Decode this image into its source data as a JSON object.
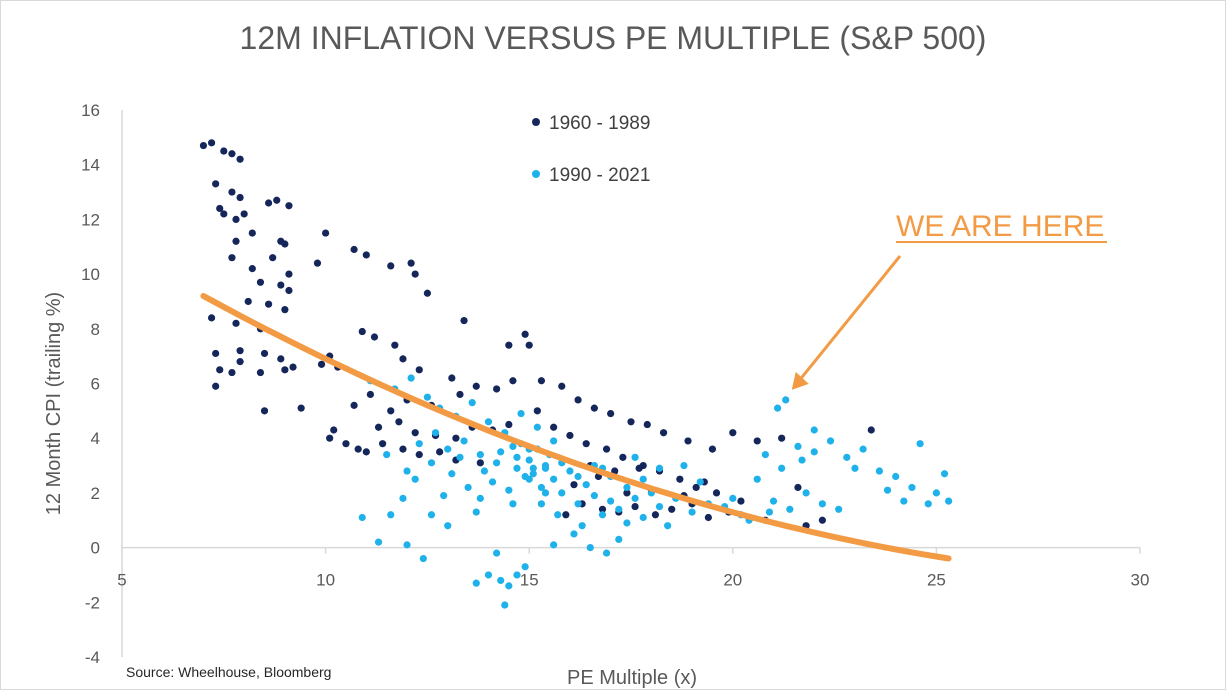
{
  "colors": {
    "series_1960_1989": "#15265a",
    "series_1990_2021": "#1fb2ea",
    "trend": "#f39a45",
    "axis": "#d9d9d9",
    "text": "#595959"
  },
  "source_note": "Source: Wheelhouse, Bloomberg",
  "chart_data": {
    "type": "scatter",
    "title": "12M INFLATION VERSUS PE MULTIPLE (S&P 500)",
    "xlabel": "PE Multiple (x)",
    "ylabel": "12 Month CPI (trailing %)",
    "xlim": [
      5,
      30
    ],
    "ylim": [
      -4,
      16
    ],
    "xticks": [
      5,
      10,
      15,
      20,
      25,
      30
    ],
    "yticks": [
      -4,
      -2,
      0,
      2,
      4,
      6,
      8,
      10,
      12,
      14,
      16
    ],
    "grid": false,
    "legend_position": "top-center",
    "series": [
      {
        "name": "1960 - 1989",
        "points": [
          [
            7.0,
            14.7
          ],
          [
            7.2,
            14.8
          ],
          [
            7.5,
            14.5
          ],
          [
            7.7,
            14.4
          ],
          [
            7.9,
            14.2
          ],
          [
            7.3,
            13.3
          ],
          [
            7.7,
            13.0
          ],
          [
            7.9,
            12.8
          ],
          [
            7.4,
            12.4
          ],
          [
            7.8,
            12.0
          ],
          [
            7.5,
            12.2
          ],
          [
            8.0,
            12.2
          ],
          [
            8.6,
            12.6
          ],
          [
            8.8,
            12.7
          ],
          [
            9.1,
            12.5
          ],
          [
            7.8,
            11.2
          ],
          [
            8.2,
            11.5
          ],
          [
            8.9,
            11.2
          ],
          [
            9.0,
            11.1
          ],
          [
            7.7,
            10.6
          ],
          [
            8.2,
            10.2
          ],
          [
            8.7,
            10.6
          ],
          [
            9.1,
            10.0
          ],
          [
            8.4,
            9.7
          ],
          [
            8.9,
            9.6
          ],
          [
            9.1,
            9.4
          ],
          [
            8.1,
            9.0
          ],
          [
            8.6,
            8.9
          ],
          [
            9.0,
            8.7
          ],
          [
            7.2,
            8.4
          ],
          [
            7.8,
            8.2
          ],
          [
            8.4,
            8.0
          ],
          [
            7.3,
            7.1
          ],
          [
            7.9,
            7.2
          ],
          [
            8.5,
            7.1
          ],
          [
            8.9,
            6.9
          ],
          [
            9.2,
            6.6
          ],
          [
            7.4,
            6.5
          ],
          [
            7.9,
            6.8
          ],
          [
            8.4,
            6.4
          ],
          [
            9.0,
            6.5
          ],
          [
            7.3,
            5.9
          ],
          [
            7.7,
            6.4
          ],
          [
            8.5,
            5.0
          ],
          [
            9.4,
            5.1
          ],
          [
            9.8,
            10.4
          ],
          [
            10.0,
            11.5
          ],
          [
            10.7,
            10.9
          ],
          [
            11.0,
            10.7
          ],
          [
            11.6,
            10.3
          ],
          [
            12.1,
            10.4
          ],
          [
            12.2,
            10.0
          ],
          [
            12.5,
            9.3
          ],
          [
            9.9,
            6.7
          ],
          [
            10.1,
            7.0
          ],
          [
            10.3,
            6.6
          ],
          [
            10.9,
            7.9
          ],
          [
            11.2,
            7.7
          ],
          [
            11.7,
            7.4
          ],
          [
            11.9,
            6.9
          ],
          [
            12.3,
            6.5
          ],
          [
            10.2,
            4.3
          ],
          [
            10.1,
            4.0
          ],
          [
            10.5,
            3.8
          ],
          [
            10.8,
            3.6
          ],
          [
            11.0,
            3.5
          ],
          [
            11.4,
            3.8
          ],
          [
            11.9,
            3.6
          ],
          [
            12.3,
            3.4
          ],
          [
            12.8,
            3.5
          ],
          [
            13.2,
            3.2
          ],
          [
            13.8,
            3.1
          ],
          [
            10.7,
            5.2
          ],
          [
            11.1,
            5.6
          ],
          [
            11.6,
            5.0
          ],
          [
            12.0,
            5.4
          ],
          [
            12.6,
            5.2
          ],
          [
            13.3,
            5.6
          ],
          [
            13.7,
            5.9
          ],
          [
            14.2,
            5.8
          ],
          [
            14.6,
            6.1
          ],
          [
            11.3,
            4.4
          ],
          [
            11.8,
            4.6
          ],
          [
            12.2,
            4.2
          ],
          [
            12.7,
            4.1
          ],
          [
            13.2,
            4.0
          ],
          [
            13.6,
            4.4
          ],
          [
            14.1,
            4.3
          ],
          [
            14.5,
            4.5
          ],
          [
            13.1,
            6.2
          ],
          [
            13.4,
            8.3
          ],
          [
            14.5,
            7.4
          ],
          [
            14.9,
            7.8
          ],
          [
            15.0,
            7.4
          ],
          [
            15.3,
            6.1
          ],
          [
            15.8,
            5.9
          ],
          [
            16.2,
            5.4
          ],
          [
            16.6,
            5.1
          ],
          [
            17.0,
            4.9
          ],
          [
            17.5,
            4.6
          ],
          [
            17.9,
            4.5
          ],
          [
            18.3,
            4.2
          ],
          [
            18.9,
            3.9
          ],
          [
            19.5,
            3.6
          ],
          [
            15.2,
            5.0
          ],
          [
            15.6,
            4.4
          ],
          [
            16.0,
            4.1
          ],
          [
            16.4,
            3.8
          ],
          [
            16.9,
            3.6
          ],
          [
            17.3,
            3.3
          ],
          [
            17.8,
            3.0
          ],
          [
            18.2,
            2.8
          ],
          [
            18.7,
            2.5
          ],
          [
            19.1,
            2.2
          ],
          [
            19.6,
            2.0
          ],
          [
            20.2,
            1.7
          ],
          [
            15.9,
            1.2
          ],
          [
            16.3,
            1.6
          ],
          [
            16.8,
            1.4
          ],
          [
            17.2,
            1.3
          ],
          [
            17.6,
            1.5
          ],
          [
            18.1,
            1.2
          ],
          [
            18.5,
            1.4
          ],
          [
            19.0,
            1.6
          ],
          [
            19.4,
            1.1
          ],
          [
            19.9,
            1.3
          ],
          [
            16.1,
            2.3
          ],
          [
            16.7,
            2.6
          ],
          [
            17.4,
            2.0
          ],
          [
            18.0,
            2.1
          ],
          [
            18.8,
            1.9
          ],
          [
            19.3,
            2.4
          ],
          [
            20.0,
            4.2
          ],
          [
            20.6,
            3.9
          ],
          [
            21.2,
            4.0
          ],
          [
            21.6,
            2.2
          ],
          [
            22.2,
            1.0
          ],
          [
            23.4,
            4.3
          ],
          [
            20.8,
            1.0
          ],
          [
            21.8,
            0.8
          ],
          [
            16.5,
            3.0
          ],
          [
            17.1,
            2.8
          ],
          [
            17.7,
            2.9
          ]
        ]
      },
      {
        "name": "1990 - 2021",
        "points": [
          [
            10.9,
            1.1
          ],
          [
            11.3,
            0.2
          ],
          [
            11.6,
            1.2
          ],
          [
            12.0,
            0.1
          ],
          [
            12.4,
            -0.4
          ],
          [
            11.9,
            1.8
          ],
          [
            12.2,
            2.5
          ],
          [
            12.6,
            3.1
          ],
          [
            12.9,
            1.9
          ],
          [
            13.1,
            2.7
          ],
          [
            13.3,
            3.3
          ],
          [
            13.5,
            2.2
          ],
          [
            13.7,
            1.3
          ],
          [
            13.9,
            2.8
          ],
          [
            14.1,
            2.4
          ],
          [
            14.3,
            3.5
          ],
          [
            14.5,
            2.1
          ],
          [
            14.7,
            2.9
          ],
          [
            14.8,
            3.8
          ],
          [
            15.0,
            3.2
          ],
          [
            15.1,
            2.7
          ],
          [
            15.2,
            3.6
          ],
          [
            15.3,
            2.2
          ],
          [
            15.4,
            2.9
          ],
          [
            15.5,
            3.4
          ],
          [
            15.6,
            2.5
          ],
          [
            15.8,
            2.0
          ],
          [
            16.0,
            2.8
          ],
          [
            16.2,
            1.6
          ],
          [
            16.4,
            2.3
          ],
          [
            16.6,
            1.9
          ],
          [
            16.8,
            1.2
          ],
          [
            17.0,
            2.6
          ],
          [
            17.2,
            1.4
          ],
          [
            17.4,
            0.9
          ],
          [
            17.6,
            1.8
          ],
          [
            17.8,
            1.1
          ],
          [
            18.0,
            2.0
          ],
          [
            18.2,
            1.5
          ],
          [
            18.4,
            0.8
          ],
          [
            14.2,
            -0.2
          ],
          [
            14.0,
            -1.0
          ],
          [
            13.7,
            -1.3
          ],
          [
            14.3,
            -1.2
          ],
          [
            14.5,
            -1.4
          ],
          [
            14.7,
            -1.0
          ],
          [
            14.4,
            -2.1
          ],
          [
            14.9,
            -0.7
          ],
          [
            15.6,
            0.1
          ],
          [
            16.1,
            0.5
          ],
          [
            16.5,
            0.0
          ],
          [
            16.9,
            -0.2
          ],
          [
            17.2,
            0.3
          ],
          [
            11.1,
            6.1
          ],
          [
            11.7,
            5.8
          ],
          [
            12.1,
            6.2
          ],
          [
            12.5,
            5.5
          ],
          [
            12.8,
            5.1
          ],
          [
            13.2,
            4.8
          ],
          [
            13.6,
            5.3
          ],
          [
            14.0,
            4.6
          ],
          [
            14.4,
            4.2
          ],
          [
            14.8,
            4.9
          ],
          [
            15.2,
            4.4
          ],
          [
            15.6,
            3.9
          ],
          [
            12.3,
            3.8
          ],
          [
            12.7,
            4.2
          ],
          [
            13.0,
            3.6
          ],
          [
            13.4,
            3.9
          ],
          [
            13.8,
            3.4
          ],
          [
            14.2,
            3.1
          ],
          [
            14.6,
            3.7
          ],
          [
            15.0,
            2.5
          ],
          [
            15.4,
            2.0
          ],
          [
            15.8,
            3.1
          ],
          [
            16.2,
            2.6
          ],
          [
            16.6,
            3.0
          ],
          [
            17.0,
            1.7
          ],
          [
            17.4,
            2.2
          ],
          [
            17.8,
            2.5
          ],
          [
            18.2,
            2.9
          ],
          [
            18.6,
            1.8
          ],
          [
            19.0,
            1.3
          ],
          [
            19.4,
            1.6
          ],
          [
            19.8,
            1.5
          ],
          [
            20.2,
            1.2
          ],
          [
            20.6,
            2.5
          ],
          [
            21.0,
            1.7
          ],
          [
            21.4,
            1.4
          ],
          [
            21.8,
            2.0
          ],
          [
            22.2,
            1.6
          ],
          [
            20.4,
            1.0
          ],
          [
            20.8,
            3.4
          ],
          [
            21.2,
            2.9
          ],
          [
            21.6,
            3.7
          ],
          [
            22.0,
            3.5
          ],
          [
            22.4,
            3.9
          ],
          [
            22.8,
            3.3
          ],
          [
            23.2,
            3.6
          ],
          [
            23.6,
            2.8
          ],
          [
            24.0,
            2.6
          ],
          [
            24.4,
            2.2
          ],
          [
            24.6,
            3.8
          ],
          [
            24.8,
            1.6
          ],
          [
            25.0,
            2.0
          ],
          [
            25.2,
            2.7
          ],
          [
            25.3,
            1.7
          ],
          [
            22.6,
            1.4
          ],
          [
            23.0,
            2.9
          ],
          [
            23.8,
            2.1
          ],
          [
            24.2,
            1.7
          ],
          [
            21.3,
            5.4
          ],
          [
            21.1,
            5.1
          ],
          [
            21.7,
            3.2
          ],
          [
            20.9,
            1.3
          ],
          [
            22.0,
            4.3
          ],
          [
            15.3,
            1.6
          ],
          [
            15.7,
            1.2
          ],
          [
            16.3,
            0.8
          ],
          [
            13.8,
            1.8
          ],
          [
            14.6,
            1.6
          ],
          [
            13.0,
            0.8
          ],
          [
            12.6,
            1.2
          ],
          [
            11.5,
            3.4
          ],
          [
            12.0,
            2.8
          ],
          [
            16.8,
            2.9
          ],
          [
            17.6,
            3.3
          ],
          [
            18.8,
            3.0
          ],
          [
            19.2,
            2.4
          ],
          [
            20.0,
            1.8
          ],
          [
            15.1,
            2.9
          ],
          [
            14.9,
            2.6
          ],
          [
            15.4,
            3.0
          ],
          [
            14.7,
            3.3
          ],
          [
            15.0,
            3.6
          ]
        ]
      }
    ],
    "trendline": {
      "type": "polynomial",
      "x_range": [
        7.0,
        25.3
      ],
      "y_at_start": 9.2,
      "y_at_end": -0.4
    },
    "annotation": {
      "text": "WE ARE HERE",
      "target": [
        21.3,
        5.4
      ]
    }
  }
}
